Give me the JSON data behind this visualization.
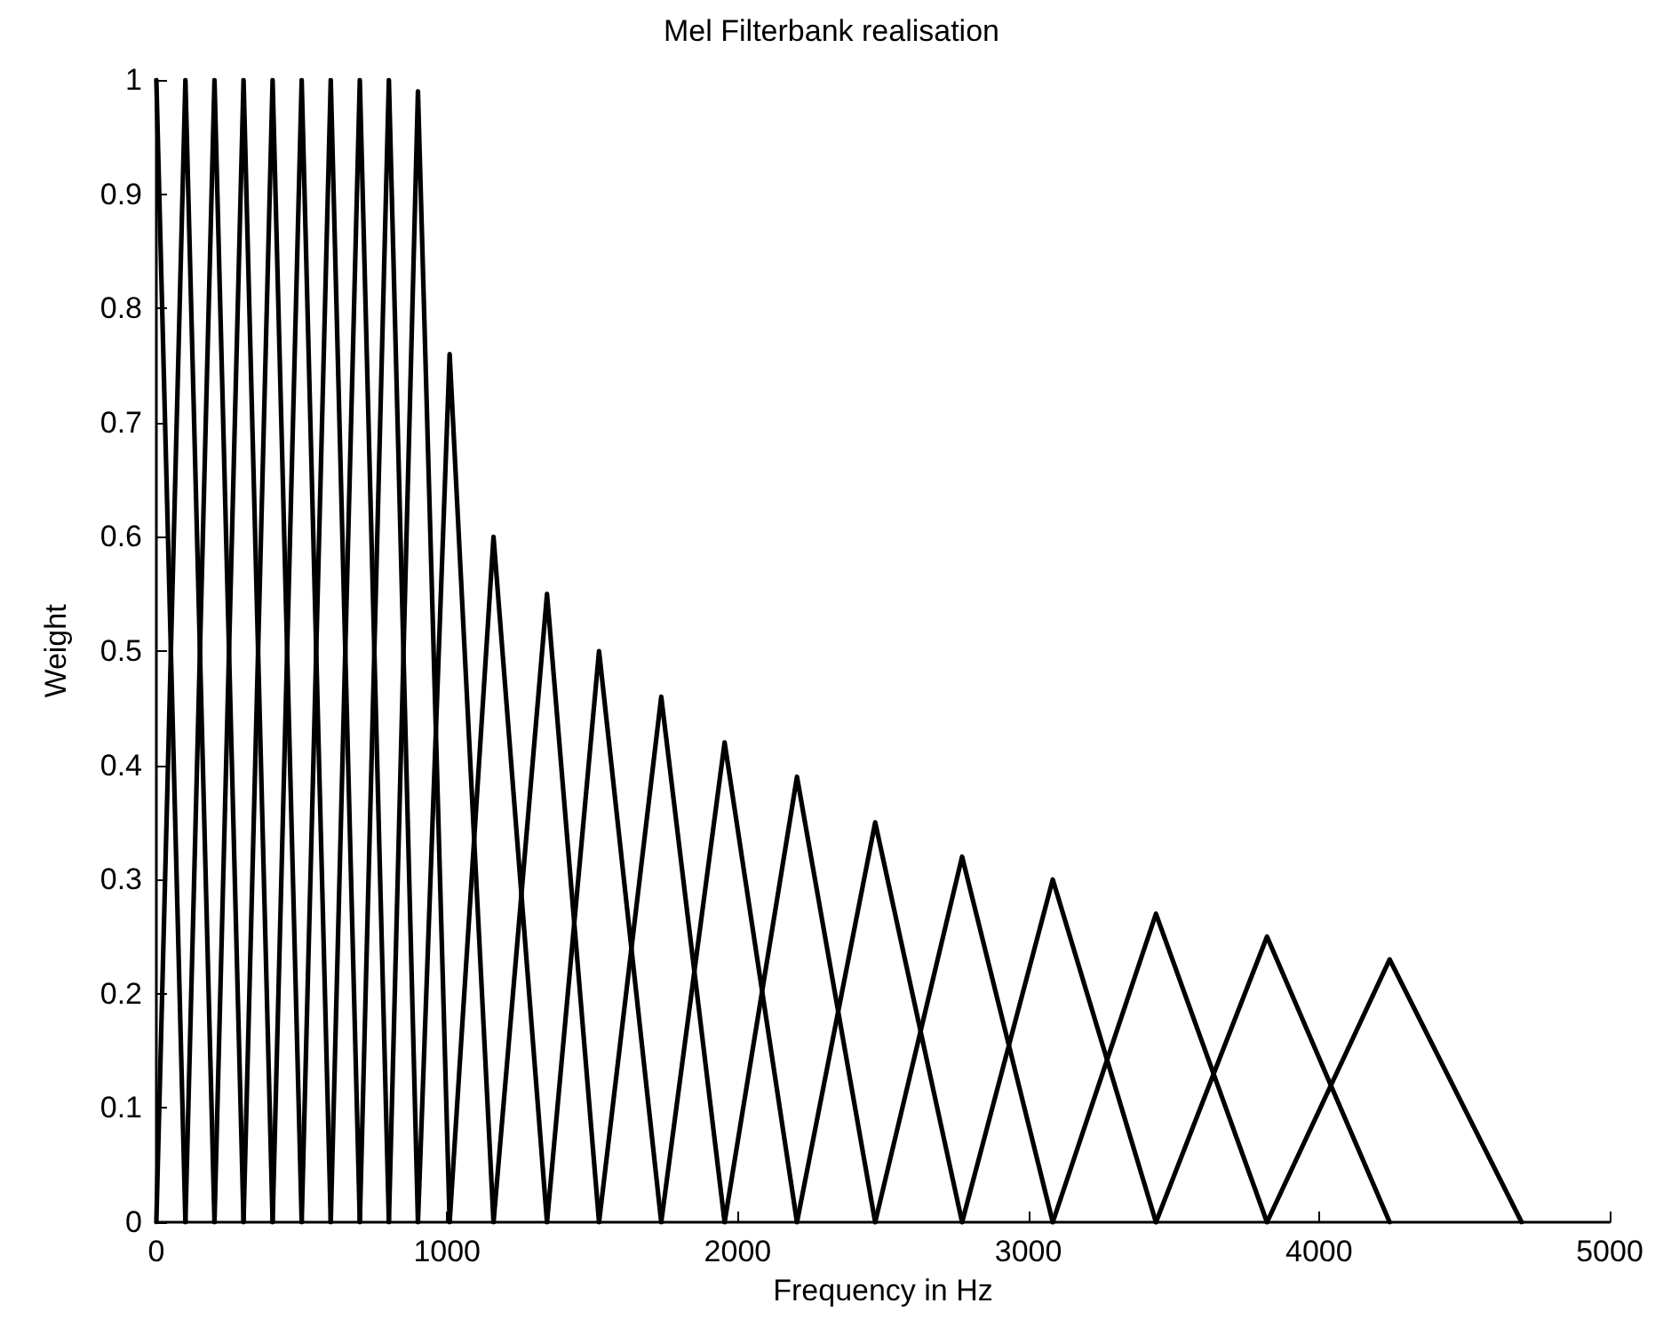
{
  "chart_data": {
    "type": "line",
    "title": "Mel Filterbank realisation",
    "xlabel": "Frequency in Hz",
    "ylabel": "Weight",
    "xlim": [
      0,
      5000
    ],
    "xticks": [
      0,
      1000,
      2000,
      3000,
      4000,
      5000
    ],
    "ylim": [
      0,
      1
    ],
    "yticks": [
      0,
      0.1,
      0.2,
      0.3,
      0.4,
      0.5,
      0.6,
      0.7,
      0.8,
      0.9,
      1
    ],
    "grid": false,
    "marker": "none",
    "line_style": "solid",
    "series": [
      {
        "color": "#000000",
        "x": [
          0,
          100
        ],
        "values": [
          1,
          0
        ]
      },
      {
        "color": "#000000",
        "x": [
          0,
          100,
          200
        ],
        "values": [
          0,
          1,
          0
        ]
      },
      {
        "color": "#000000",
        "x": [
          100,
          200,
          300
        ],
        "values": [
          0,
          1,
          0
        ]
      },
      {
        "color": "#000000",
        "x": [
          200,
          300,
          400
        ],
        "values": [
          0,
          1,
          0
        ]
      },
      {
        "color": "#000000",
        "x": [
          300,
          400,
          500
        ],
        "values": [
          0,
          1,
          0
        ]
      },
      {
        "color": "#000000",
        "x": [
          400,
          500,
          600
        ],
        "values": [
          0,
          1,
          0
        ]
      },
      {
        "color": "#000000",
        "x": [
          500,
          600,
          700
        ],
        "values": [
          0,
          1,
          0
        ]
      },
      {
        "color": "#000000",
        "x": [
          600,
          700,
          800
        ],
        "values": [
          0,
          1,
          0
        ]
      },
      {
        "color": "#000000",
        "x": [
          700,
          800,
          900
        ],
        "values": [
          0,
          1,
          0
        ]
      },
      {
        "color": "#000000",
        "x": [
          800,
          900,
          1009
        ],
        "values": [
          0,
          0.99,
          0
        ]
      },
      {
        "color": "#000000",
        "x": [
          900,
          1009,
          1160
        ],
        "values": [
          0,
          0.76,
          0
        ]
      },
      {
        "color": "#000000",
        "x": [
          1009,
          1160,
          1344
        ],
        "values": [
          0,
          0.6,
          0
        ]
      },
      {
        "color": "#000000",
        "x": [
          1160,
          1344,
          1523
        ],
        "values": [
          0,
          0.55,
          0
        ]
      },
      {
        "color": "#000000",
        "x": [
          1344,
          1523,
          1737
        ],
        "values": [
          0,
          0.5,
          0
        ]
      },
      {
        "color": "#000000",
        "x": [
          1523,
          1737,
          1955
        ],
        "values": [
          0,
          0.46,
          0
        ]
      },
      {
        "color": "#000000",
        "x": [
          1737,
          1955,
          2204
        ],
        "values": [
          0,
          0.42,
          0
        ]
      },
      {
        "color": "#000000",
        "x": [
          1955,
          2204,
          2473
        ],
        "values": [
          0,
          0.39,
          0
        ]
      },
      {
        "color": "#000000",
        "x": [
          2204,
          2473,
          2772
        ],
        "values": [
          0,
          0.35,
          0
        ]
      },
      {
        "color": "#000000",
        "x": [
          2473,
          2772,
          3084
        ],
        "values": [
          0,
          0.32,
          0
        ]
      },
      {
        "color": "#000000",
        "x": [
          2772,
          3084,
          3439
        ],
        "values": [
          0,
          0.3,
          0
        ]
      },
      {
        "color": "#000000",
        "x": [
          3084,
          3439,
          3821
        ],
        "values": [
          0,
          0.27,
          0
        ]
      },
      {
        "color": "#000000",
        "x": [
          3439,
          3821,
          4243
        ],
        "values": [
          0,
          0.25,
          0
        ]
      },
      {
        "color": "#000000",
        "x": [
          3821,
          4243,
          4697
        ],
        "values": [
          0,
          0.23,
          0
        ]
      }
    ]
  }
}
